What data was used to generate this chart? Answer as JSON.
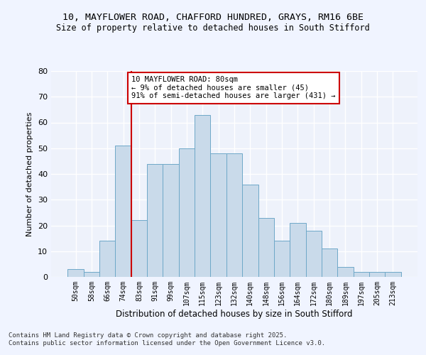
{
  "title_line1": "10, MAYFLOWER ROAD, CHAFFORD HUNDRED, GRAYS, RM16 6BE",
  "title_line2": "Size of property relative to detached houses in South Stifford",
  "xlabel": "Distribution of detached houses by size in South Stifford",
  "ylabel": "Number of detached properties",
  "bin_labels": [
    "50sqm",
    "58sqm",
    "66sqm",
    "74sqm",
    "83sqm",
    "91sqm",
    "99sqm",
    "107sqm",
    "115sqm",
    "123sqm",
    "132sqm",
    "140sqm",
    "148sqm",
    "156sqm",
    "164sqm",
    "172sqm",
    "180sqm",
    "189sqm",
    "197sqm",
    "205sqm",
    "213sqm"
  ],
  "bar_heights": [
    3,
    2,
    14,
    51,
    22,
    44,
    44,
    50,
    63,
    48,
    48,
    36,
    23,
    14,
    21,
    18,
    11,
    4,
    2,
    2,
    2
  ],
  "bar_color": "#c9daea",
  "bar_edge_color": "#6ea8c8",
  "vline_x": 4.0,
  "vline_color": "#cc0000",
  "annotation_text": "10 MAYFLOWER ROAD: 80sqm\n← 9% of detached houses are smaller (45)\n91% of semi-detached houses are larger (431) →",
  "annotation_box_color": "#ffffff",
  "annotation_box_edge": "#cc0000",
  "ylim": [
    0,
    80
  ],
  "yticks": [
    0,
    10,
    20,
    30,
    40,
    50,
    60,
    70,
    80
  ],
  "bg_color": "#eef2fb",
  "grid_color": "#ffffff",
  "footer_line1": "Contains HM Land Registry data © Crown copyright and database right 2025.",
  "footer_line2": "Contains public sector information licensed under the Open Government Licence v3.0."
}
